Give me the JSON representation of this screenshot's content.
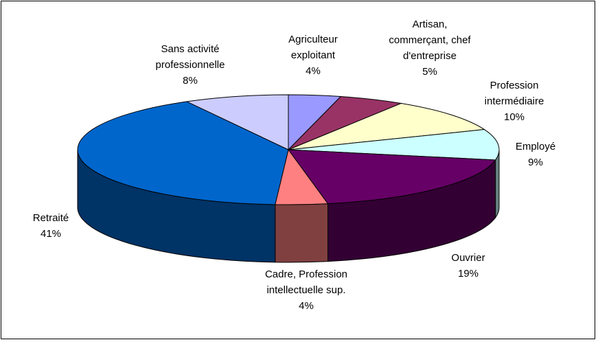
{
  "chart_data": {
    "type": "pie",
    "categories": [
      "Agriculteur exploitant",
      "Artisan, commerçant, chef d'entreprise",
      "Profession intermédiaire",
      "Employé",
      "Ouvrier",
      "Cadre, Profession intellectuelle sup.",
      "Retraité",
      "Sans activité professionnelle"
    ],
    "values": [
      4,
      5,
      10,
      9,
      19,
      4,
      41,
      8
    ],
    "value_labels": [
      "4%",
      "5%",
      "10%",
      "9%",
      "19%",
      "4%",
      "41%",
      "8%"
    ],
    "colors": [
      "#9999ff",
      "#993366",
      "#ffffcc",
      "#ccffff",
      "#660066",
      "#ff8080",
      "#0066cc",
      "#ccccff"
    ]
  }
}
